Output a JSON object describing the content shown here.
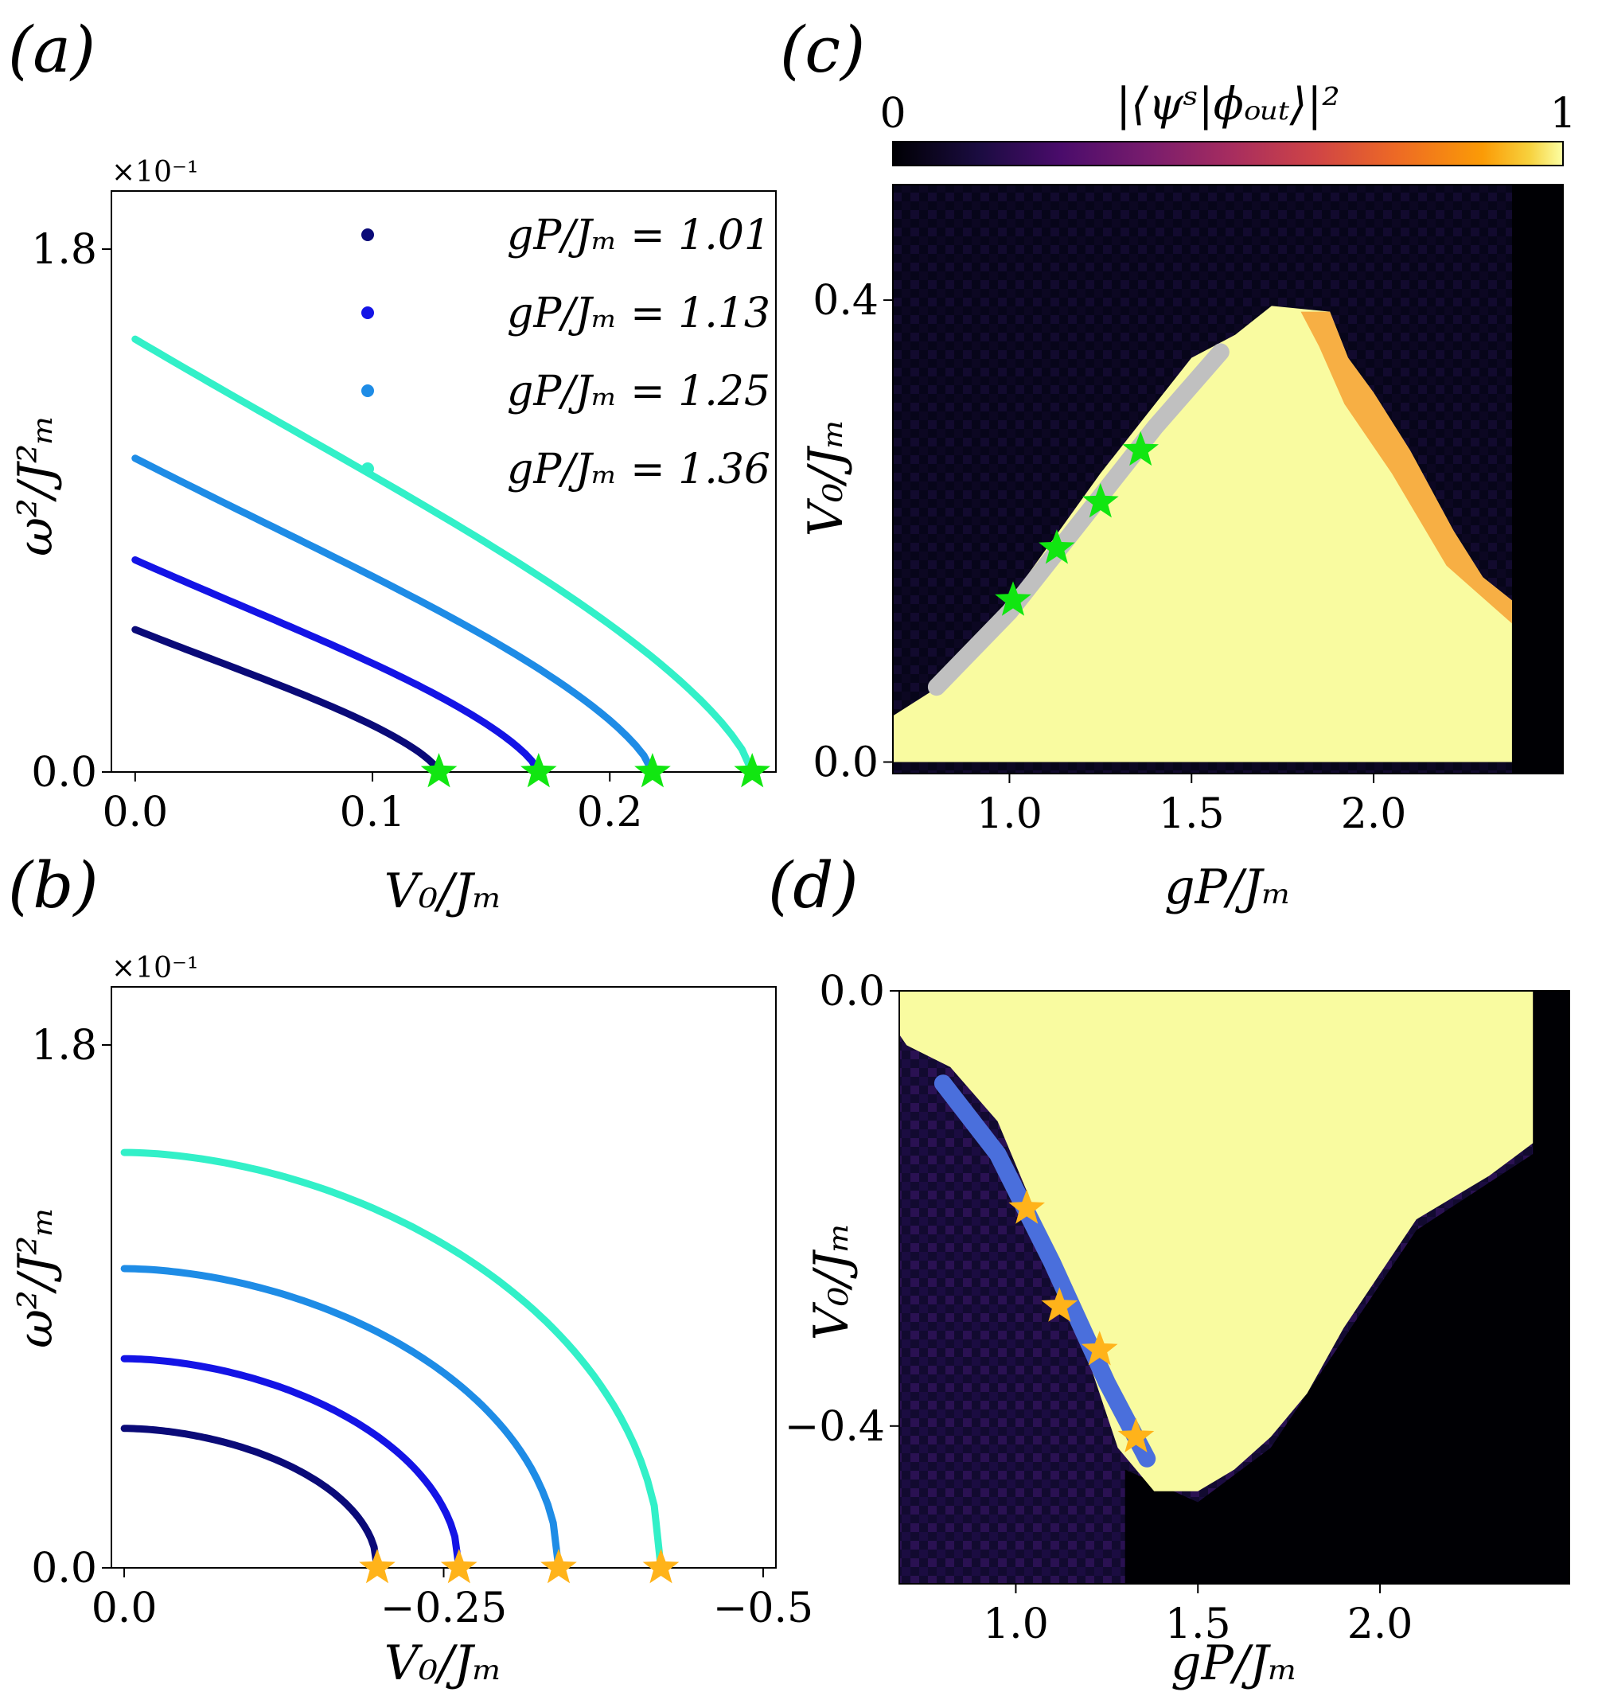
{
  "figure": {
    "panel_labels": [
      "(a)",
      "(b)",
      "(c)",
      "(d)"
    ],
    "series_colors": [
      "#0a0a78",
      "#1414e6",
      "#1e8ce6",
      "#32f0c8"
    ],
    "star_colors": {
      "c_and_a": "#11e611",
      "d_and_b": "#ffb31a"
    },
    "boundary_colors": {
      "c": "#c0c0c0",
      "d": "#4a6fdc"
    }
  },
  "chart_data": [
    {
      "panel": "(a)",
      "type": "line",
      "xlabel": "V₀/Jₘ",
      "ylabel": "ω²/J²ₘ",
      "multiplier": "×10⁻¹",
      "xlim": [
        -0.01,
        0.27
      ],
      "ylim": [
        0,
        2.0
      ],
      "xticks": [
        0.0,
        0.1,
        0.2
      ],
      "xticklabels": [
        "0.0",
        "0.1",
        "0.2"
      ],
      "yticks": [
        0.0,
        1.8
      ],
      "yticklabels": [
        "0.0",
        "1.8"
      ],
      "legend": "top-right",
      "series": [
        {
          "name": "gP/Jₘ = 1.01",
          "x0": 0.0,
          "y0": 0.49,
          "xend": 0.128,
          "shape": "sqrt"
        },
        {
          "name": "gP/Jₘ = 1.13",
          "x0": 0.0,
          "y0": 0.73,
          "xend": 0.17,
          "shape": "sqrt"
        },
        {
          "name": "gP/Jₘ = 1.25",
          "x0": 0.0,
          "y0": 1.08,
          "xend": 0.218,
          "shape": "sqrt"
        },
        {
          "name": "gP/Jₘ = 1.36",
          "x0": 0.0,
          "y0": 1.49,
          "xend": 0.26,
          "shape": "sqrt"
        }
      ],
      "stars_x": [
        0.128,
        0.17,
        0.218,
        0.26
      ]
    },
    {
      "panel": "(b)",
      "type": "line",
      "xlabel": "V₀/Jₘ",
      "ylabel": "ω²/J²ₘ",
      "multiplier": "×10⁻¹",
      "xlim": [
        0.01,
        -0.51
      ],
      "ylim": [
        0,
        2.0
      ],
      "xticks": [
        0.0,
        -0.25,
        -0.5
      ],
      "xticklabels": [
        "0.0",
        "−0.25",
        "−0.5"
      ],
      "yticks": [
        0.0,
        1.8
      ],
      "yticklabels": [
        "0.0",
        "1.8"
      ],
      "series": [
        {
          "x0": 0.0,
          "y0": 0.48,
          "xend": -0.198,
          "shape": "flat-then-drop"
        },
        {
          "x0": 0.0,
          "y0": 0.72,
          "xend": -0.262,
          "shape": "flat-then-drop"
        },
        {
          "x0": 0.0,
          "y0": 1.03,
          "xend": -0.34,
          "shape": "flat-then-drop"
        },
        {
          "x0": 0.0,
          "y0": 1.43,
          "xend": -0.42,
          "shape": "flat-then-drop"
        }
      ],
      "stars_x": [
        -0.198,
        -0.262,
        -0.34,
        -0.42
      ]
    },
    {
      "panel": "(c)",
      "type": "heatmap",
      "colorbar": {
        "label": "|⟨ψˢ|ϕₒᵤₜ⟩|²",
        "min_label": "0",
        "max_label": "1",
        "colormap": "inferno"
      },
      "xlabel": "gP/Jₘ",
      "ylabel": "V₀/Jₘ",
      "xlim": [
        0.68,
        2.52
      ],
      "ylim": [
        -0.01,
        0.5
      ],
      "xticks": [
        1.0,
        1.5,
        2.0
      ],
      "xticklabels": [
        "1.0",
        "1.5",
        "2.0"
      ],
      "yticks": [
        0.0,
        0.4
      ],
      "yticklabels": [
        "0.0",
        "0.4"
      ],
      "bright_region": [
        [
          0.68,
          0.0
        ],
        [
          0.68,
          0.04
        ],
        [
          0.78,
          0.06
        ],
        [
          1.0,
          0.14
        ],
        [
          1.25,
          0.25
        ],
        [
          1.5,
          0.35
        ],
        [
          1.62,
          0.37
        ],
        [
          1.72,
          0.395
        ],
        [
          1.88,
          0.39
        ],
        [
          1.93,
          0.35
        ],
        [
          2.0,
          0.32
        ],
        [
          2.1,
          0.27
        ],
        [
          2.22,
          0.2
        ],
        [
          2.3,
          0.16
        ],
        [
          2.38,
          0.14
        ],
        [
          2.38,
          0.0
        ]
      ],
      "boundary_x": [
        0.8,
        1.0,
        1.2,
        1.4,
        1.58
      ],
      "boundary_y": [
        0.065,
        0.13,
        0.21,
        0.29,
        0.355
      ],
      "stars": [
        [
          1.01,
          0.14
        ],
        [
          1.13,
          0.185
        ],
        [
          1.25,
          0.225
        ],
        [
          1.36,
          0.27
        ]
      ]
    },
    {
      "panel": "(d)",
      "type": "heatmap",
      "xlabel": "gP/Jₘ",
      "ylabel": "V₀/Jₘ",
      "xlim": [
        0.68,
        2.52
      ],
      "ylim": [
        -0.545,
        0.0
      ],
      "xticks": [
        1.0,
        1.5,
        2.0
      ],
      "xticklabels": [
        "1.0",
        "1.5",
        "2.0"
      ],
      "yticks": [
        0.0,
        -0.4
      ],
      "yticklabels": [
        "0.0",
        "−0.4"
      ],
      "bright_region": [
        [
          0.68,
          0.0
        ],
        [
          2.42,
          0.0
        ],
        [
          2.42,
          -0.14
        ],
        [
          2.3,
          -0.17
        ],
        [
          2.1,
          -0.21
        ],
        [
          2.0,
          -0.26
        ],
        [
          1.9,
          -0.31
        ],
        [
          1.8,
          -0.37
        ],
        [
          1.7,
          -0.41
        ],
        [
          1.6,
          -0.44
        ],
        [
          1.5,
          -0.46
        ],
        [
          1.38,
          -0.46
        ],
        [
          1.28,
          -0.42
        ],
        [
          1.1,
          -0.24
        ],
        [
          0.95,
          -0.12
        ],
        [
          0.82,
          -0.07
        ],
        [
          0.7,
          -0.05
        ],
        [
          0.68,
          -0.04
        ]
      ],
      "boundary_x": [
        0.8,
        0.95,
        1.1,
        1.25,
        1.36
      ],
      "boundary_y": [
        -0.085,
        -0.15,
        -0.25,
        -0.36,
        -0.43
      ],
      "stars": [
        [
          1.03,
          -0.2
        ],
        [
          1.12,
          -0.29
        ],
        [
          1.23,
          -0.33
        ],
        [
          1.33,
          -0.41
        ]
      ]
    }
  ]
}
